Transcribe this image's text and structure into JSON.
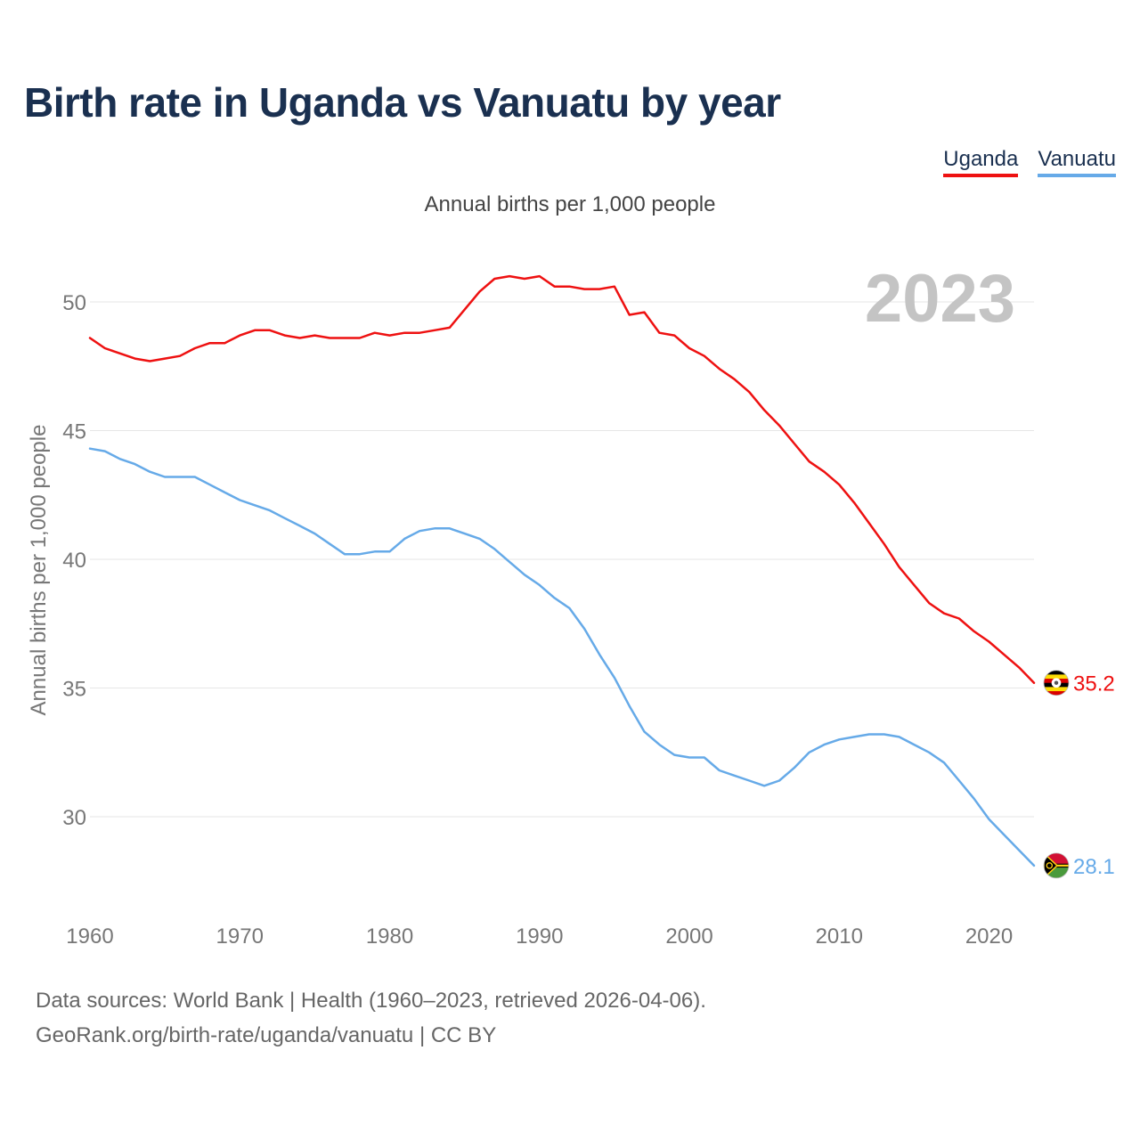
{
  "header": {
    "title": "Birth rate in Uganda vs Vanuatu by year"
  },
  "legend": [
    {
      "label": "Uganda",
      "color": "#ee1111"
    },
    {
      "label": "Vanuatu",
      "color": "#66aae8"
    }
  ],
  "chart_data": {
    "type": "line",
    "title": "Birth rate in Uganda vs Vanuatu by year",
    "subtitle": "Annual births per 1,000 people",
    "xlabel": "",
    "ylabel": "Annual births per 1,000 people",
    "year_label": "2023",
    "xlim": [
      1960,
      2023
    ],
    "ylim": [
      26.5,
      53
    ],
    "x_ticks": [
      1960,
      1970,
      1980,
      1990,
      2000,
      2010,
      2020
    ],
    "y_ticks": [
      30,
      35,
      40,
      45,
      50
    ],
    "grid": true,
    "x": [
      1960,
      1961,
      1962,
      1963,
      1964,
      1965,
      1966,
      1967,
      1968,
      1969,
      1970,
      1971,
      1972,
      1973,
      1974,
      1975,
      1976,
      1977,
      1978,
      1979,
      1980,
      1981,
      1982,
      1983,
      1984,
      1985,
      1986,
      1987,
      1988,
      1989,
      1990,
      1991,
      1992,
      1993,
      1994,
      1995,
      1996,
      1997,
      1998,
      1999,
      2000,
      2001,
      2002,
      2003,
      2004,
      2005,
      2006,
      2007,
      2008,
      2009,
      2010,
      2011,
      2012,
      2013,
      2014,
      2015,
      2016,
      2017,
      2018,
      2019,
      2020,
      2021,
      2022,
      2023
    ],
    "series": [
      {
        "name": "Uganda",
        "color": "#ee1111",
        "end_label": "35.2",
        "values": [
          48.6,
          48.2,
          48.0,
          47.8,
          47.7,
          47.8,
          47.9,
          48.2,
          48.4,
          48.4,
          48.7,
          48.9,
          48.9,
          48.7,
          48.6,
          48.7,
          48.6,
          48.6,
          48.6,
          48.8,
          48.7,
          48.8,
          48.8,
          48.9,
          49.0,
          49.7,
          50.4,
          50.9,
          51.0,
          50.9,
          51.0,
          50.6,
          50.6,
          50.5,
          50.5,
          50.6,
          49.5,
          49.6,
          48.8,
          48.7,
          48.2,
          47.9,
          47.4,
          47.0,
          46.5,
          45.8,
          45.2,
          44.5,
          43.8,
          43.4,
          42.9,
          42.2,
          41.4,
          40.6,
          39.7,
          39.0,
          38.3,
          37.9,
          37.7,
          37.2,
          36.8,
          36.3,
          35.8,
          35.2
        ]
      },
      {
        "name": "Vanuatu",
        "color": "#66aae8",
        "end_label": "28.1",
        "values": [
          44.3,
          44.2,
          43.9,
          43.7,
          43.4,
          43.2,
          43.2,
          43.2,
          42.9,
          42.6,
          42.3,
          42.1,
          41.9,
          41.6,
          41.3,
          41.0,
          40.6,
          40.2,
          40.2,
          40.3,
          40.3,
          40.8,
          41.1,
          41.2,
          41.2,
          41.0,
          40.8,
          40.4,
          39.9,
          39.4,
          39.0,
          38.5,
          38.1,
          37.3,
          36.3,
          35.4,
          34.3,
          33.3,
          32.8,
          32.4,
          32.3,
          32.3,
          31.8,
          31.6,
          31.4,
          31.2,
          31.4,
          31.9,
          32.5,
          32.8,
          33.0,
          33.1,
          33.2,
          33.2,
          33.1,
          32.8,
          32.5,
          32.1,
          31.4,
          30.7,
          29.9,
          29.3,
          28.7,
          28.1
        ]
      }
    ]
  },
  "footer": {
    "line1": "Data sources: World Bank | Health (1960–2023, retrieved 2026-04-06).",
    "line2": "GeoRank.org/birth-rate/uganda/vanuatu | CC BY"
  }
}
